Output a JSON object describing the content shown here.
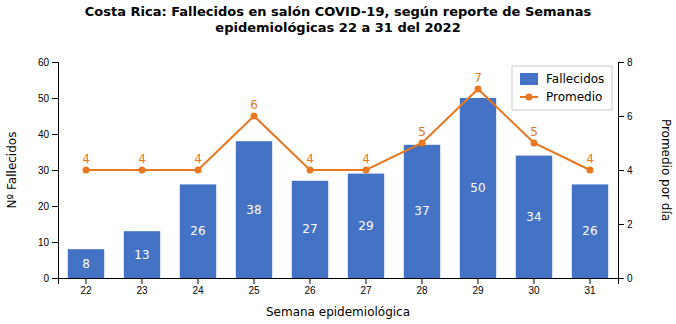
{
  "chart_data": {
    "type": "bar",
    "title": "Costa Rica: Fallecidos en salón COVID-19, según reporte de Semanas\nepidemiológicas 22 a 31 del 2022",
    "xlabel": "Semana epidemiológica",
    "ylabel": "Nº Fallecidos",
    "y2label": "Promedio por día",
    "categories": [
      22,
      23,
      24,
      25,
      26,
      27,
      28,
      29,
      30,
      31
    ],
    "series": [
      {
        "name": "Fallecidos",
        "type": "bar",
        "color": "#4472C4",
        "data_labels": true,
        "values": [
          8,
          13,
          26,
          38,
          27,
          29,
          37,
          50,
          34,
          26
        ]
      },
      {
        "name": "Promedio",
        "type": "line",
        "axis": "y2",
        "color": "#E87722",
        "marker": "circle",
        "data_labels": true,
        "values": [
          4,
          4,
          4,
          6,
          4,
          4,
          5,
          7,
          5,
          4
        ]
      }
    ],
    "ylim": [
      0,
      60
    ],
    "yticks": [
      0,
      10,
      20,
      30,
      40,
      50,
      60
    ],
    "y2lim": [
      0,
      8
    ],
    "y2ticks": [
      0,
      2,
      4,
      6,
      8
    ],
    "grid": false,
    "legend": "upper right"
  }
}
